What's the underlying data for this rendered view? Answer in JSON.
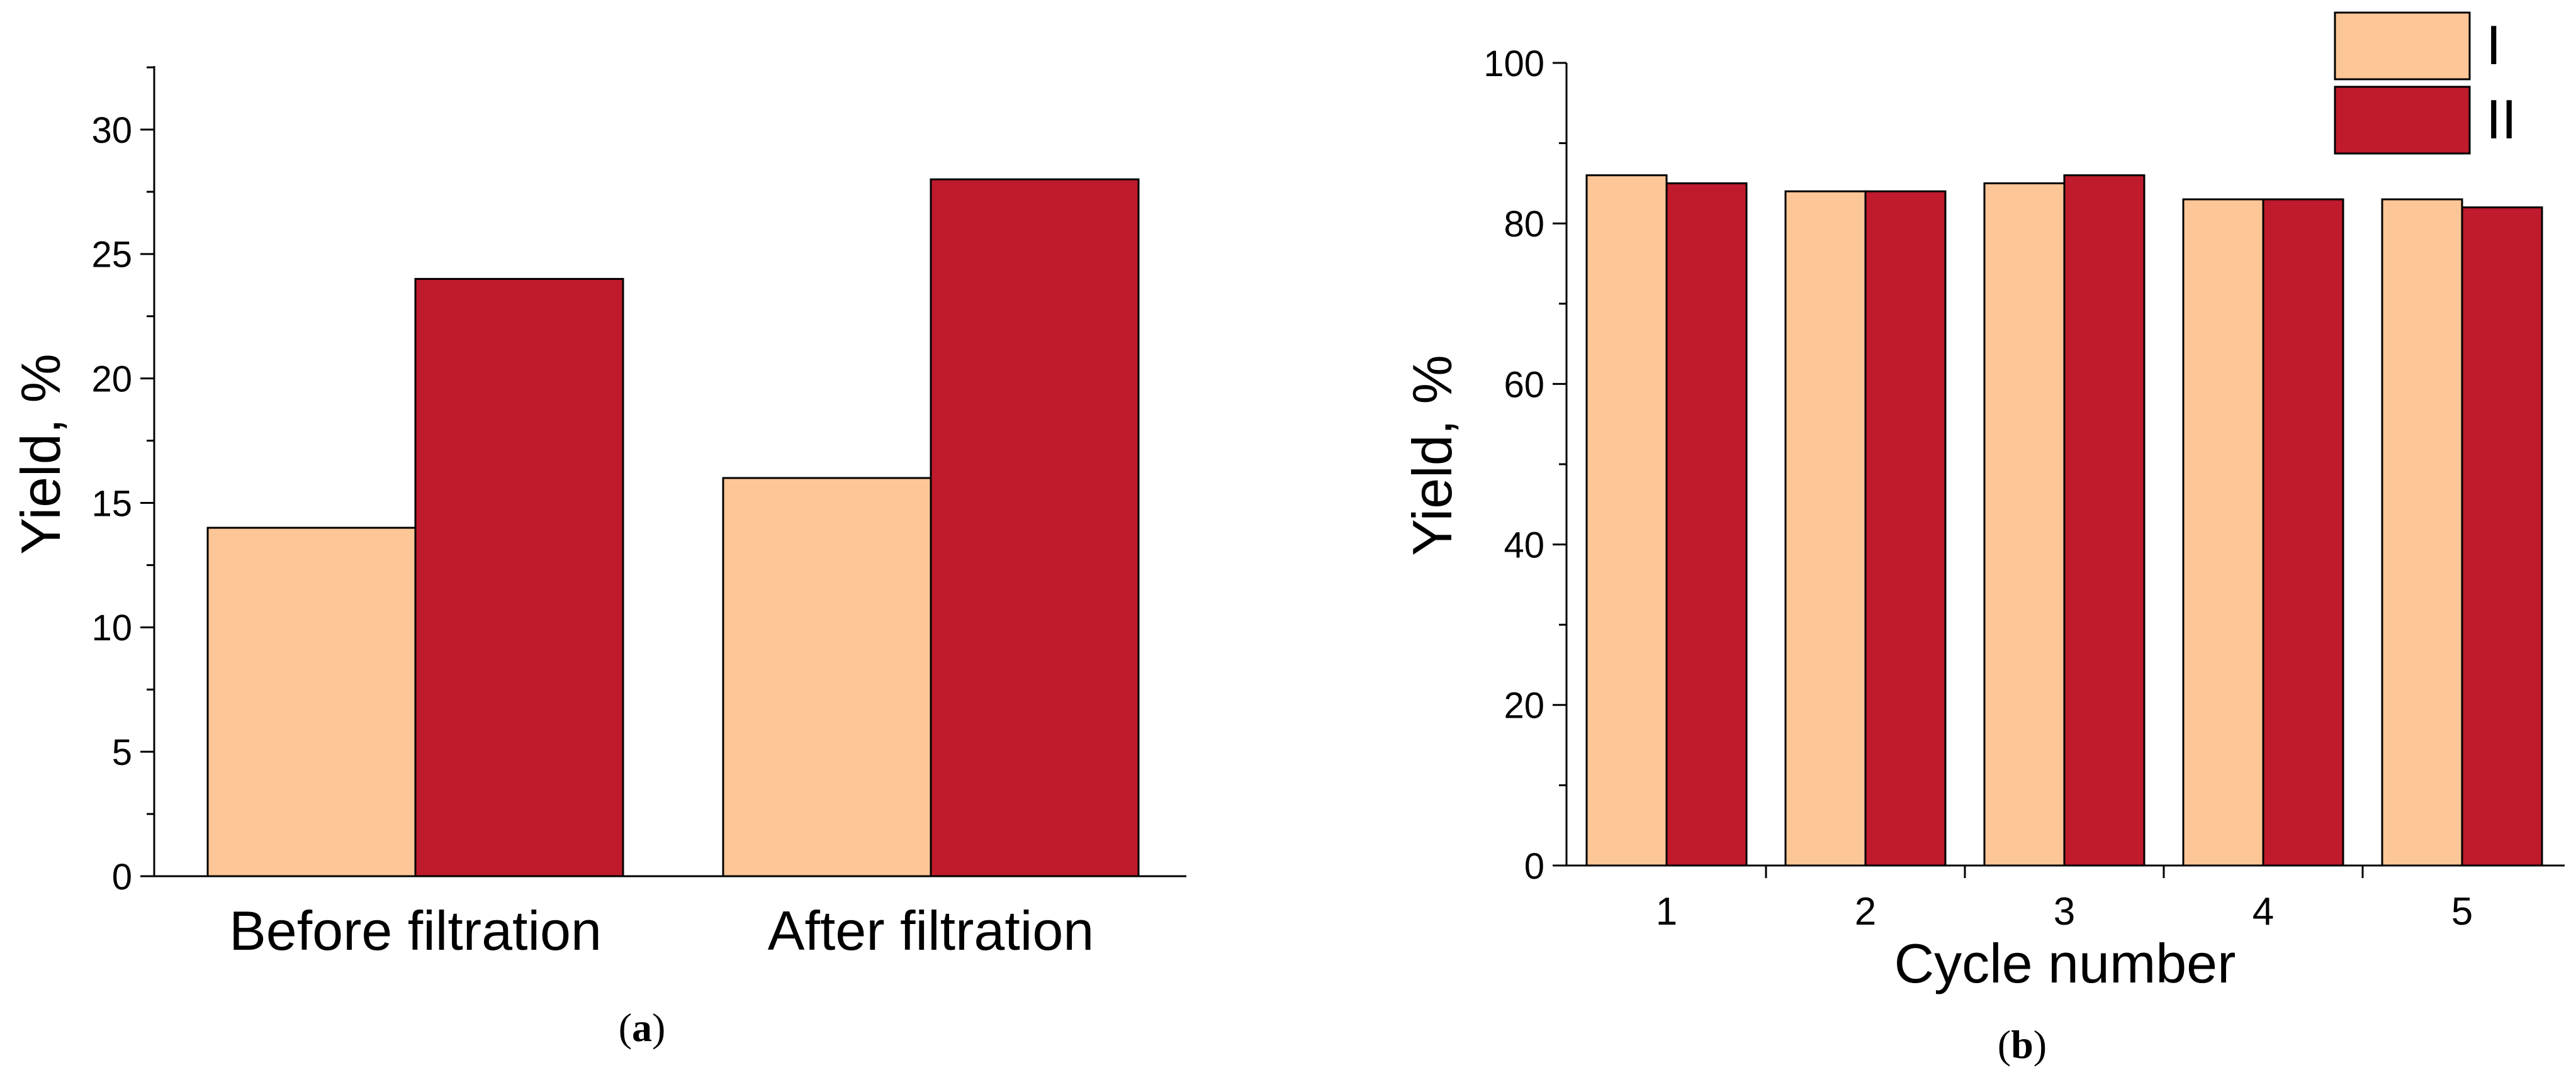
{
  "colors": {
    "series_I": "#FDC696",
    "series_II": "#BF1B2C",
    "axis": "#000000"
  },
  "panel_a": {
    "caption_paren_open": "(",
    "caption_letter": "a",
    "caption_paren_close": ")"
  },
  "panel_b": {
    "caption_paren_open": "(",
    "caption_letter": "b",
    "caption_paren_close": ")"
  },
  "chart_data": [
    {
      "type": "bar",
      "title": "",
      "xlabel": "",
      "ylabel": "Yield, %",
      "categories": [
        "Before filtration",
        "After filtration"
      ],
      "series": [
        {
          "values": [
            14,
            16
          ]
        },
        {
          "values": [
            24,
            28
          ]
        }
      ],
      "ylim": [
        0,
        32.5
      ],
      "yticks": [
        0,
        5,
        10,
        15,
        20,
        25,
        30
      ],
      "ytick_labels": [
        "0",
        "5",
        "10",
        "15",
        "20",
        "25",
        "30"
      ],
      "y_minor_step": 2.5,
      "legend": null,
      "grid": false
    },
    {
      "type": "bar",
      "title": "",
      "xlabel": "Cycle number",
      "ylabel": "Yield, %",
      "categories": [
        "1",
        "2",
        "3",
        "4",
        "5"
      ],
      "series": [
        {
          "name": "I",
          "values": [
            86,
            84,
            85,
            83,
            83
          ]
        },
        {
          "name": "II",
          "values": [
            85,
            84,
            86,
            83,
            82
          ]
        }
      ],
      "ylim": [
        0,
        100
      ],
      "yticks": [
        0,
        20,
        40,
        60,
        80,
        100
      ],
      "ytick_labels": [
        "0",
        "20",
        "40",
        "60",
        "80",
        "100"
      ],
      "y_minor_step": 10,
      "legend": "top-right",
      "grid": false
    }
  ]
}
